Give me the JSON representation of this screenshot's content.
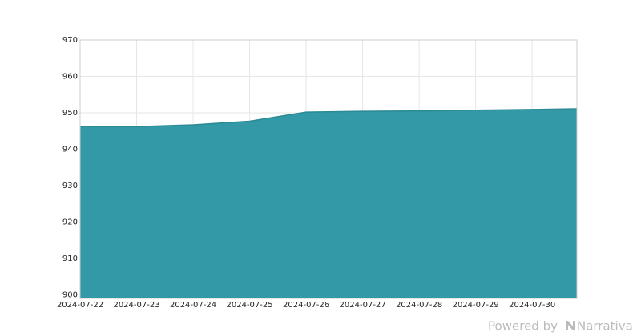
{
  "chart_data": {
    "type": "area",
    "x": [
      "2024-07-22",
      "2024-07-23",
      "2024-07-24",
      "2024-07-25",
      "2024-07-26",
      "2024-07-27",
      "2024-07-28",
      "2024-07-29",
      "2024-07-30",
      "2024-07-30T19:00"
    ],
    "series": [
      {
        "color": "#3399a6",
        "line_color": "#2b8a94",
        "values": [
          946.2,
          946.2,
          946.7,
          947.7,
          950.2,
          950.4,
          950.5,
          950.7,
          950.9,
          951.1
        ]
      }
    ],
    "xlim": [
      "2024-07-22",
      "2024-07-30T19:00"
    ],
    "xticks": [
      "2024-07-22",
      "2024-07-23",
      "2024-07-24",
      "2024-07-25",
      "2024-07-26",
      "2024-07-27",
      "2024-07-28",
      "2024-07-29",
      "2024-07-30"
    ],
    "ylim": [
      899,
      970
    ],
    "yticks": [
      900,
      910,
      920,
      930,
      940,
      950,
      960,
      970
    ],
    "grid": true
  },
  "footer": {
    "prefix": "Powered by",
    "brand": "Narrativa"
  }
}
